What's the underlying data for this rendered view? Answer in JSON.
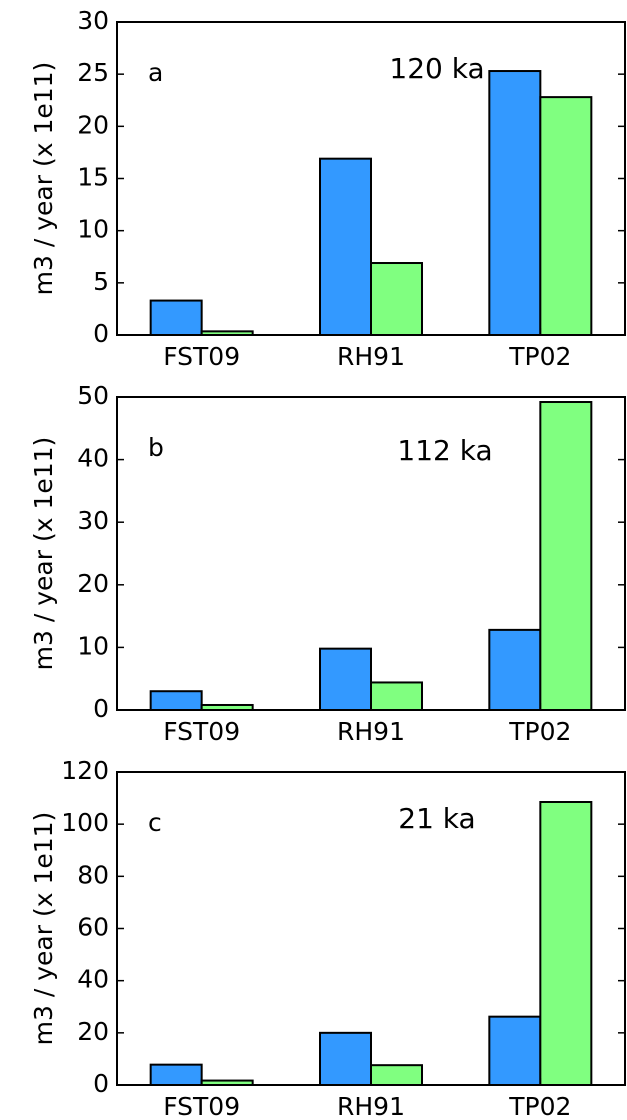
{
  "chart_data": [
    {
      "type": "bar",
      "panel_label": "a",
      "annotation": "120 ka",
      "ylabel": "m3 / year (x 1e11)",
      "categories": [
        "FST09",
        "RH91",
        "TP02"
      ],
      "series": [
        {
          "color": "#3399ff",
          "values": [
            3.3,
            16.9,
            25.3
          ]
        },
        {
          "color": "#80ff80",
          "values": [
            0.35,
            6.9,
            22.8
          ]
        }
      ],
      "ylim": [
        0,
        30
      ],
      "yticks": [
        0,
        5,
        10,
        15,
        20,
        25,
        30
      ],
      "grid": false
    },
    {
      "type": "bar",
      "panel_label": "b",
      "annotation": "112 ka",
      "ylabel": "m3 / year (x 1e11)",
      "categories": [
        "FST09",
        "RH91",
        "TP02"
      ],
      "series": [
        {
          "color": "#3399ff",
          "values": [
            3.0,
            9.8,
            12.8
          ]
        },
        {
          "color": "#80ff80",
          "values": [
            0.8,
            4.4,
            49.2
          ]
        }
      ],
      "ylim": [
        0,
        50
      ],
      "yticks": [
        0,
        10,
        20,
        30,
        40,
        50
      ],
      "grid": false
    },
    {
      "type": "bar",
      "panel_label": "c",
      "annotation": "21 ka",
      "ylabel": "m3 / year (x 1e11)",
      "categories": [
        "FST09",
        "RH91",
        "TP02"
      ],
      "series": [
        {
          "color": "#3399ff",
          "values": [
            7.8,
            20.0,
            26.2
          ]
        },
        {
          "color": "#80ff80",
          "values": [
            1.7,
            7.6,
            108.5
          ]
        }
      ],
      "ylim": [
        0,
        120
      ],
      "yticks": [
        0,
        20,
        40,
        60,
        80,
        100,
        120
      ],
      "grid": false
    }
  ]
}
